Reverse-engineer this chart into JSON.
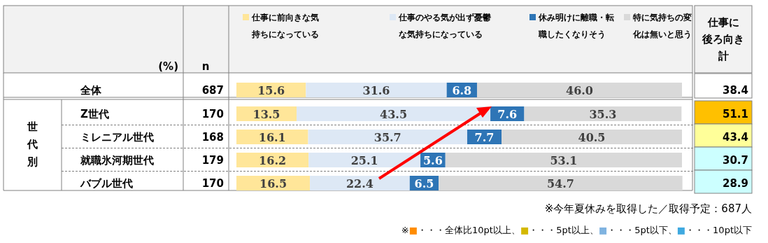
{
  "chart_data": {
    "type": "bar",
    "orientation": "horizontal",
    "stacked": true,
    "legend": "top",
    "xlim": [
      0,
      100
    ],
    "categories": [
      "全体",
      "Z世代",
      "ミレニアル世代",
      "就職氷河期世代",
      "バブル世代"
    ],
    "series": [
      {
        "name": "仕事に前向きな気持ちになっている",
        "color": "#ffe699",
        "values": [
          15.6,
          13.5,
          16.1,
          16.2,
          16.5
        ],
        "value_labels": [
          "15.6",
          "13.5",
          "16.1",
          "16.2",
          "16.5"
        ]
      },
      {
        "name": "仕事のやる気が出ず憂鬱な気持ちになっている",
        "color": "#dde8f5",
        "values": [
          31.6,
          43.5,
          35.7,
          25.1,
          22.4
        ],
        "value_labels": [
          "31.6",
          "43.5",
          "35.7",
          "25.1",
          "22.4"
        ]
      },
      {
        "name": "休み明けに離職・転職したくなりそう",
        "color": "#2e75b6",
        "values": [
          6.8,
          7.6,
          7.7,
          5.6,
          6.5
        ],
        "value_labels": [
          "6.8",
          "7.6",
          "7.7",
          "5.6",
          "6.5"
        ]
      },
      {
        "name": "特に気持ちの変化は無いと思う",
        "color": "#d9d9d9",
        "values": [
          46.0,
          35.3,
          40.5,
          53.1,
          54.7
        ],
        "value_labels": [
          "46.0",
          "35.3",
          "40.5",
          "53.1",
          "54.7"
        ]
      }
    ],
    "annotations": [
      "(%)",
      "n",
      "687",
      "170",
      "168",
      "179",
      "170",
      "仕事に後ろ向き計",
      "38.4",
      "51.1",
      "43.4",
      "30.7",
      "28.9",
      "世代別",
      "※今年夏休みを取得した／取得予定：687人",
      "※■・・・全体比10pt以上、■・・・5pt以上、■・・・5pt以下、■・・・10pt以下"
    ]
  }
}
